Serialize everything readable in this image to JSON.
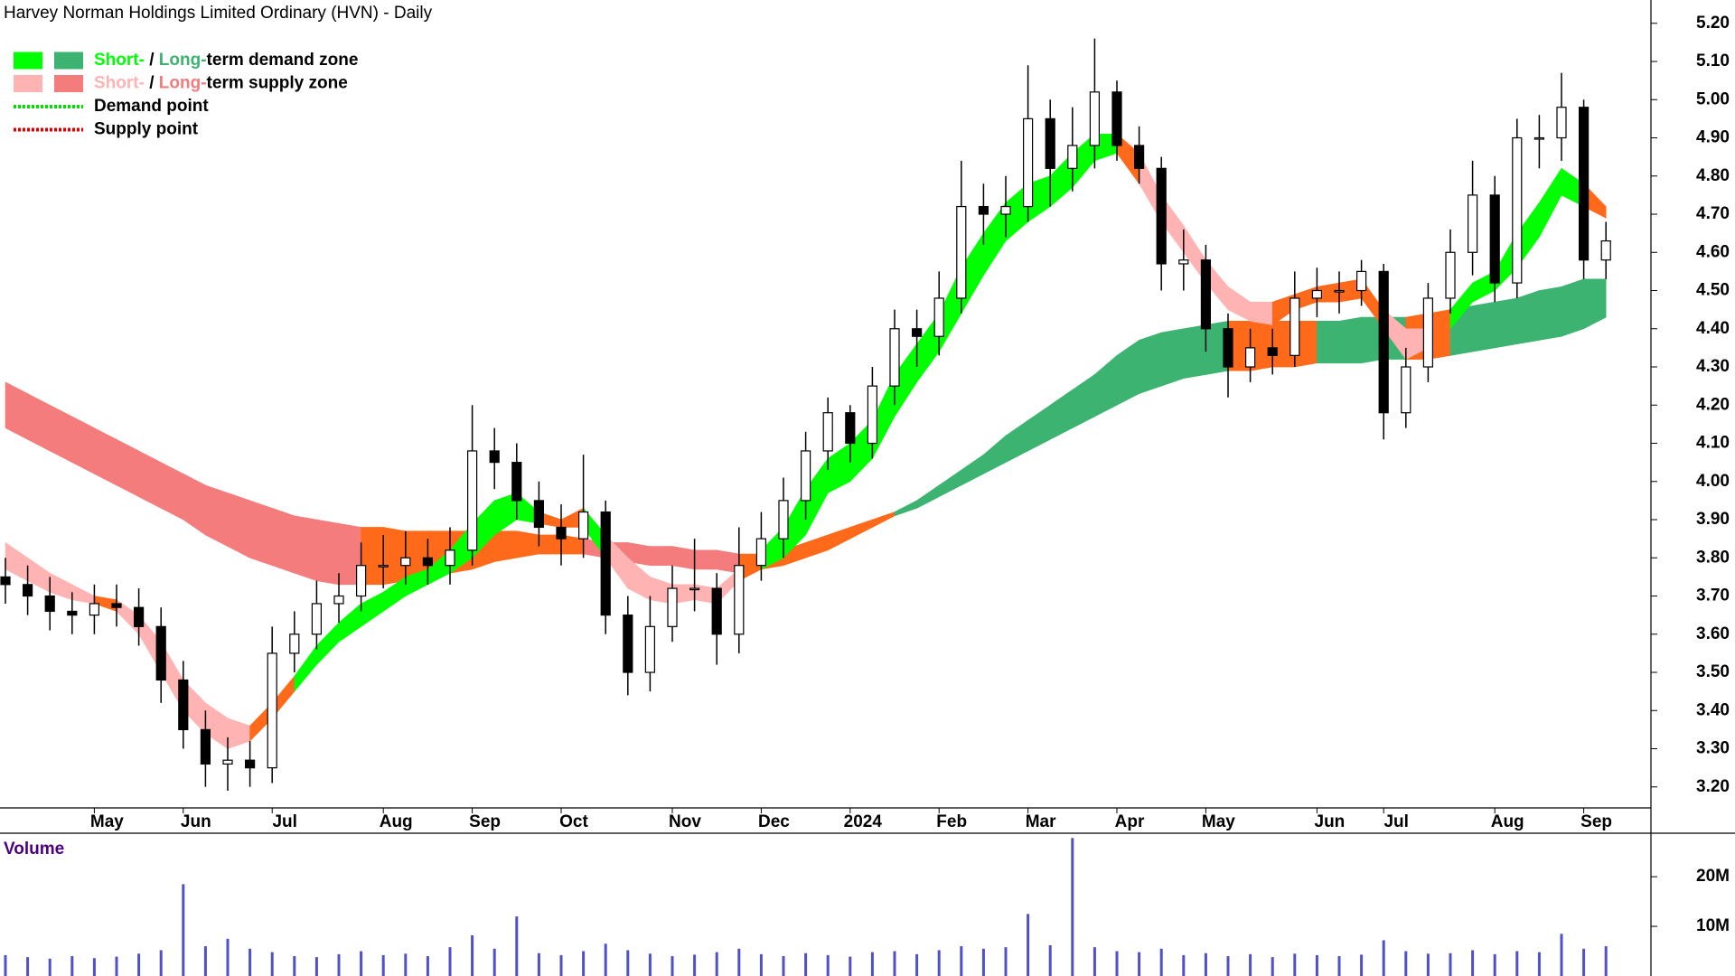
{
  "chart_data": {
    "type": "candlestick",
    "title": "Harvey Norman Holdings Limited Ordinary (HVN) - Daily",
    "legend": [
      {
        "swatches": [
          "#00ff00",
          "#3cb371"
        ],
        "parts": [
          {
            "text": "Short-",
            "color": "#00ff00"
          },
          {
            "text": " / ",
            "color": "#000000"
          },
          {
            "text": "Long-",
            "color": "#3cb371"
          },
          {
            "text": "term demand zone",
            "color": "#000000"
          }
        ]
      },
      {
        "swatches": [
          "#ffb3b3",
          "#f47c7c"
        ],
        "parts": [
          {
            "text": "Short-",
            "color": "#ffb3b3"
          },
          {
            "text": " / ",
            "color": "#000000"
          },
          {
            "text": "Long-",
            "color": "#f47c7c"
          },
          {
            "text": "term supply zone",
            "color": "#000000"
          }
        ]
      },
      {
        "line": "#00e000",
        "parts": [
          {
            "text": "Demand point",
            "color": "#000000"
          }
        ]
      },
      {
        "line": "#e00000",
        "parts": [
          {
            "text": "Supply point",
            "color": "#000000"
          }
        ]
      }
    ],
    "categories": [
      null,
      null,
      null,
      null,
      "May",
      null,
      null,
      null,
      "Jun",
      null,
      null,
      null,
      "Jul",
      null,
      null,
      null,
      null,
      "Aug",
      null,
      null,
      null,
      "Sep",
      null,
      null,
      null,
      "Oct",
      null,
      null,
      null,
      null,
      "Nov",
      null,
      null,
      null,
      "Dec",
      null,
      null,
      null,
      "2024",
      null,
      null,
      null,
      "Feb",
      null,
      null,
      null,
      "Mar",
      null,
      null,
      null,
      "Apr",
      null,
      null,
      null,
      "May",
      null,
      null,
      null,
      null,
      "Jun",
      null,
      null,
      "Jul",
      null,
      null,
      null,
      null,
      "Aug",
      null,
      null,
      null,
      "Sep",
      null
    ],
    "open": [
      3.75,
      3.73,
      3.7,
      3.66,
      3.65,
      3.68,
      3.67,
      3.62,
      3.48,
      3.35,
      3.26,
      3.27,
      3.25,
      3.55,
      3.6,
      3.68,
      3.7,
      3.78,
      3.78,
      3.8,
      3.78,
      3.82,
      4.08,
      4.05,
      3.95,
      3.88,
      3.85,
      3.92,
      3.65,
      3.5,
      3.62,
      3.72,
      3.72,
      3.6,
      3.78,
      3.85,
      3.95,
      4.08,
      4.18,
      4.1,
      4.25,
      4.4,
      4.38,
      4.48,
      4.72,
      4.7,
      4.72,
      4.95,
      4.82,
      4.88,
      5.02,
      4.88,
      4.82,
      4.57,
      4.58,
      4.4,
      4.3,
      4.35,
      4.33,
      4.48,
      4.5,
      4.5,
      4.55,
      4.18,
      4.3,
      4.48,
      4.6,
      4.75,
      4.52,
      4.9,
      4.9,
      4.98,
      4.58
    ],
    "high": [
      3.8,
      3.78,
      3.75,
      3.71,
      3.73,
      3.73,
      3.72,
      3.67,
      3.53,
      3.4,
      3.33,
      3.32,
      3.62,
      3.66,
      3.74,
      3.76,
      3.84,
      3.86,
      3.87,
      3.85,
      3.88,
      4.2,
      4.14,
      4.1,
      4.0,
      3.94,
      4.07,
      3.95,
      3.7,
      3.7,
      3.78,
      3.85,
      3.76,
      3.88,
      3.92,
      4.01,
      4.13,
      4.22,
      4.2,
      4.3,
      4.45,
      4.45,
      4.55,
      4.84,
      4.78,
      4.8,
      5.09,
      5.0,
      4.98,
      5.16,
      5.05,
      4.93,
      4.85,
      4.66,
      4.62,
      4.44,
      4.4,
      4.4,
      4.55,
      4.56,
      4.55,
      4.58,
      4.57,
      4.35,
      4.52,
      4.66,
      4.84,
      4.8,
      4.95,
      4.96,
      5.07,
      5.0,
      4.68
    ],
    "low": [
      3.68,
      3.65,
      3.61,
      3.6,
      3.6,
      3.62,
      3.57,
      3.42,
      3.3,
      3.2,
      3.19,
      3.2,
      3.21,
      3.5,
      3.56,
      3.63,
      3.66,
      3.72,
      3.73,
      3.73,
      3.73,
      3.78,
      3.98,
      3.9,
      3.83,
      3.78,
      3.8,
      3.6,
      3.44,
      3.45,
      3.58,
      3.66,
      3.52,
      3.55,
      3.74,
      3.8,
      3.9,
      4.03,
      4.05,
      4.06,
      4.2,
      4.3,
      4.33,
      4.44,
      4.62,
      4.64,
      4.68,
      4.72,
      4.76,
      4.82,
      4.84,
      4.78,
      4.5,
      4.5,
      4.34,
      4.22,
      4.26,
      4.28,
      4.3,
      4.43,
      4.44,
      4.46,
      4.11,
      4.14,
      4.26,
      4.44,
      4.54,
      4.47,
      4.48,
      4.82,
      4.84,
      4.53,
      4.53
    ],
    "close": [
      3.73,
      3.7,
      3.66,
      3.65,
      3.68,
      3.67,
      3.62,
      3.48,
      3.35,
      3.26,
      3.27,
      3.25,
      3.55,
      3.6,
      3.68,
      3.7,
      3.78,
      3.78,
      3.8,
      3.78,
      3.82,
      4.08,
      4.05,
      3.95,
      3.88,
      3.85,
      3.92,
      3.65,
      3.5,
      3.62,
      3.72,
      3.72,
      3.6,
      3.78,
      3.85,
      3.95,
      4.08,
      4.18,
      4.1,
      4.25,
      4.4,
      4.38,
      4.48,
      4.72,
      4.7,
      4.72,
      4.95,
      4.82,
      4.88,
      5.02,
      4.88,
      4.82,
      4.57,
      4.58,
      4.4,
      4.3,
      4.35,
      4.33,
      4.48,
      4.5,
      4.5,
      4.55,
      4.18,
      4.3,
      4.48,
      4.6,
      4.75,
      4.52,
      4.9,
      4.9,
      4.98,
      4.58,
      4.63
    ],
    "bands": [
      {
        "upper": [
          4.26,
          4.23,
          4.2,
          4.17,
          4.14,
          4.11,
          4.08,
          4.05,
          4.02,
          3.99,
          3.97,
          3.95,
          3.93,
          3.91,
          3.9,
          3.89,
          3.88,
          3.88,
          3.87,
          3.87,
          3.87,
          3.87,
          3.87,
          3.87,
          3.86,
          3.86,
          3.85,
          3.84,
          3.84,
          3.83,
          3.83,
          3.82,
          3.82,
          3.81,
          3.81,
          3.82,
          3.84,
          3.86,
          3.88,
          3.9,
          3.92,
          3.95,
          3.99,
          4.03,
          4.07,
          4.12,
          4.16,
          4.2,
          4.24,
          4.28,
          4.33,
          4.37,
          4.39,
          4.4,
          4.41,
          4.42,
          4.42,
          4.42,
          4.42,
          4.42,
          4.42,
          4.43,
          4.43,
          4.43,
          4.44,
          4.45,
          4.46,
          4.47,
          4.48,
          4.5,
          4.51,
          4.53,
          4.53
        ],
        "lower": [
          4.14,
          4.11,
          4.08,
          4.05,
          4.02,
          3.99,
          3.96,
          3.93,
          3.9,
          3.86,
          3.83,
          3.8,
          3.78,
          3.76,
          3.74,
          3.73,
          3.73,
          3.73,
          3.74,
          3.75,
          3.76,
          3.77,
          3.79,
          3.8,
          3.81,
          3.81,
          3.81,
          3.8,
          3.79,
          3.78,
          3.78,
          3.77,
          3.77,
          3.76,
          3.77,
          3.78,
          3.8,
          3.82,
          3.85,
          3.88,
          3.91,
          3.93,
          3.96,
          3.99,
          4.02,
          4.05,
          4.08,
          4.11,
          4.14,
          4.17,
          4.2,
          4.23,
          4.25,
          4.27,
          4.28,
          4.29,
          4.29,
          4.3,
          4.3,
          4.31,
          4.31,
          4.31,
          4.32,
          4.32,
          4.32,
          4.33,
          4.34,
          4.35,
          4.36,
          4.37,
          4.38,
          4.4,
          4.43
        ],
        "colors": [
          "#f47c7c",
          "#f47c7c",
          "#f47c7c",
          "#f47c7c",
          "#f47c7c",
          "#f47c7c",
          "#f47c7c",
          "#f47c7c",
          "#f47c7c",
          "#f47c7c",
          "#f47c7c",
          "#f47c7c",
          "#f47c7c",
          "#f47c7c",
          "#f47c7c",
          "#f47c7c",
          "#ff6a1a",
          "#ff6a1a",
          "#ff6a1a",
          "#ff6a1a",
          "#ff6a1a",
          "#ff6a1a",
          "#ff6a1a",
          "#ff6a1a",
          "#ff6a1a",
          "#ff6a1a",
          "#f47c7c",
          "#f47c7c",
          "#f47c7c",
          "#f47c7c",
          "#f47c7c",
          "#f47c7c",
          "#f47c7c",
          "#ff6a1a",
          "#ff6a1a",
          "#ff6a1a",
          "#ff6a1a",
          "#ff6a1a",
          "#ff6a1a",
          "#ff6a1a",
          "#3cb371",
          "#3cb371",
          "#3cb371",
          "#3cb371",
          "#3cb371",
          "#3cb371",
          "#3cb371",
          "#3cb371",
          "#3cb371",
          "#3cb371",
          "#3cb371",
          "#3cb371",
          "#3cb371",
          "#3cb371",
          "#3cb371",
          "#ff6a1a",
          "#ff6a1a",
          "#ff6a1a",
          "#ff6a1a",
          "#3cb371",
          "#3cb371",
          "#3cb371",
          "#3cb371",
          "#ff6a1a",
          "#ff6a1a",
          "#3cb371",
          "#3cb371",
          "#3cb371",
          "#3cb371",
          "#3cb371",
          "#3cb371",
          "#3cb371",
          "#3cb371"
        ]
      },
      {
        "upper": [
          3.84,
          3.8,
          3.76,
          3.73,
          3.7,
          3.69,
          3.65,
          3.58,
          3.48,
          3.42,
          3.38,
          3.36,
          3.42,
          3.49,
          3.57,
          3.63,
          3.68,
          3.71,
          3.75,
          3.77,
          3.82,
          3.89,
          3.95,
          3.97,
          3.92,
          3.9,
          3.93,
          3.86,
          3.8,
          3.75,
          3.73,
          3.73,
          3.72,
          3.77,
          3.82,
          3.88,
          3.98,
          4.06,
          4.1,
          4.16,
          4.28,
          4.36,
          4.44,
          4.56,
          4.65,
          4.73,
          4.78,
          4.8,
          4.86,
          4.91,
          4.91,
          4.86,
          4.75,
          4.67,
          4.58,
          4.51,
          4.47,
          4.47,
          4.49,
          4.51,
          4.52,
          4.53,
          4.45,
          4.4,
          4.4,
          4.45,
          4.52,
          4.55,
          4.65,
          4.73,
          4.82,
          4.78,
          4.72
        ],
        "lower": [
          3.77,
          3.74,
          3.71,
          3.69,
          3.68,
          3.66,
          3.6,
          3.5,
          3.4,
          3.34,
          3.3,
          3.32,
          3.38,
          3.45,
          3.52,
          3.58,
          3.62,
          3.66,
          3.7,
          3.73,
          3.76,
          3.8,
          3.86,
          3.9,
          3.89,
          3.88,
          3.88,
          3.8,
          3.72,
          3.69,
          3.68,
          3.69,
          3.68,
          3.74,
          3.77,
          3.8,
          3.86,
          3.97,
          4.0,
          4.06,
          4.17,
          4.26,
          4.34,
          4.44,
          4.54,
          4.63,
          4.68,
          4.72,
          4.77,
          4.84,
          4.86,
          4.78,
          4.68,
          4.6,
          4.52,
          4.45,
          4.42,
          4.41,
          4.45,
          4.47,
          4.47,
          4.48,
          4.4,
          4.32,
          4.35,
          4.4,
          4.47,
          4.5,
          4.56,
          4.64,
          4.75,
          4.72,
          4.69
        ],
        "colors": [
          "#ffb3b3",
          "#ffb3b3",
          "#ffb3b3",
          "#ffb3b3",
          "#ff6a1a",
          "#ffb3b3",
          "#ffb3b3",
          "#ffb3b3",
          "#ffb3b3",
          "#ffb3b3",
          "#ffb3b3",
          "#ff6a1a",
          "#ff6a1a",
          "#00ff00",
          "#00ff00",
          "#00ff00",
          "#00ff00",
          "#00ff00",
          "#00ff00",
          "#00ff00",
          "#00ff00",
          "#00ff00",
          "#00ff00",
          "#00ff00",
          "#ff6a1a",
          "#ff6a1a",
          "#00ff00",
          "#ffb3b3",
          "#ffb3b3",
          "#ffb3b3",
          "#ffb3b3",
          "#ffb3b3",
          "#ffb3b3",
          "#ff6a1a",
          "#00ff00",
          "#00ff00",
          "#00ff00",
          "#00ff00",
          "#00ff00",
          "#00ff00",
          "#00ff00",
          "#00ff00",
          "#00ff00",
          "#00ff00",
          "#00ff00",
          "#00ff00",
          "#00ff00",
          "#00ff00",
          "#00ff00",
          "#00ff00",
          "#ff6a1a",
          "#ffb3b3",
          "#ffb3b3",
          "#ffb3b3",
          "#ffb3b3",
          "#ffb3b3",
          "#ffb3b3",
          "#ff6a1a",
          "#ff6a1a",
          "#ff6a1a",
          "#ff6a1a",
          "#ff6a1a",
          "#ffb3b3",
          "#ffb3b3",
          "#ff6a1a",
          "#00ff00",
          "#00ff00",
          "#00ff00",
          "#00ff00",
          "#00ff00",
          "#00ff00",
          "#ff6a1a",
          "#ff6a1a"
        ]
      }
    ],
    "ylim": [
      3.145,
      5.261
    ],
    "yticks": [
      {
        "value": 3.2,
        "label": "3.20"
      },
      {
        "value": 3.3,
        "label": "3.30"
      },
      {
        "value": 3.4,
        "label": "3.40"
      },
      {
        "value": 3.5,
        "label": "3.50"
      },
      {
        "value": 3.6,
        "label": "3.60"
      },
      {
        "value": 3.7,
        "label": "3.70"
      },
      {
        "value": 3.8,
        "label": "3.80"
      },
      {
        "value": 3.9,
        "label": "3.90"
      },
      {
        "value": 4.0,
        "label": "4.00"
      },
      {
        "value": 4.1,
        "label": "4.10"
      },
      {
        "value": 4.2,
        "label": "4.20"
      },
      {
        "value": 4.3,
        "label": "4.30"
      },
      {
        "value": 4.4,
        "label": "4.40"
      },
      {
        "value": 4.5,
        "label": "4.50"
      },
      {
        "value": 4.6,
        "label": "4.60"
      },
      {
        "value": 4.7,
        "label": "4.70"
      },
      {
        "value": 4.8,
        "label": "4.80"
      },
      {
        "value": 4.9,
        "label": "4.90"
      },
      {
        "value": 5.0,
        "label": "5.00"
      },
      {
        "value": 5.1,
        "label": "5.10"
      },
      {
        "value": 5.2,
        "label": "5.20"
      }
    ],
    "volume": {
      "title": "Volume",
      "color": "#5050c8",
      "values": [
        4200000,
        3800000,
        3500000,
        4000000,
        3600000,
        3900000,
        4500000,
        5200000,
        18500000,
        6000000,
        7500000,
        5500000,
        4800000,
        4000000,
        3800000,
        4400000,
        5000000,
        4200000,
        4500000,
        4000000,
        5800000,
        8200000,
        5500000,
        12000000,
        4600000,
        4200000,
        5000000,
        6500000,
        5200000,
        4500000,
        4000000,
        4300000,
        4800000,
        5500000,
        4400000,
        4000000,
        4600000,
        4200000,
        3900000,
        4800000,
        5000000,
        4400000,
        5200000,
        6000000,
        5500000,
        5800000,
        12500000,
        6200000,
        27800000,
        5800000,
        5000000,
        4800000,
        5500000,
        4200000,
        4600000,
        4000000,
        4400000,
        3800000,
        4500000,
        4200000,
        4000000,
        4300000,
        7200000,
        5000000,
        4500000,
        4600000,
        5200000,
        4400000,
        5000000,
        4800000,
        8500000,
        5500000,
        6000000
      ],
      "ylim": [
        0,
        28400000
      ],
      "yticks": [
        {
          "value": 10000000,
          "label": "10M"
        },
        {
          "value": 20000000,
          "label": "20M"
        }
      ]
    }
  }
}
